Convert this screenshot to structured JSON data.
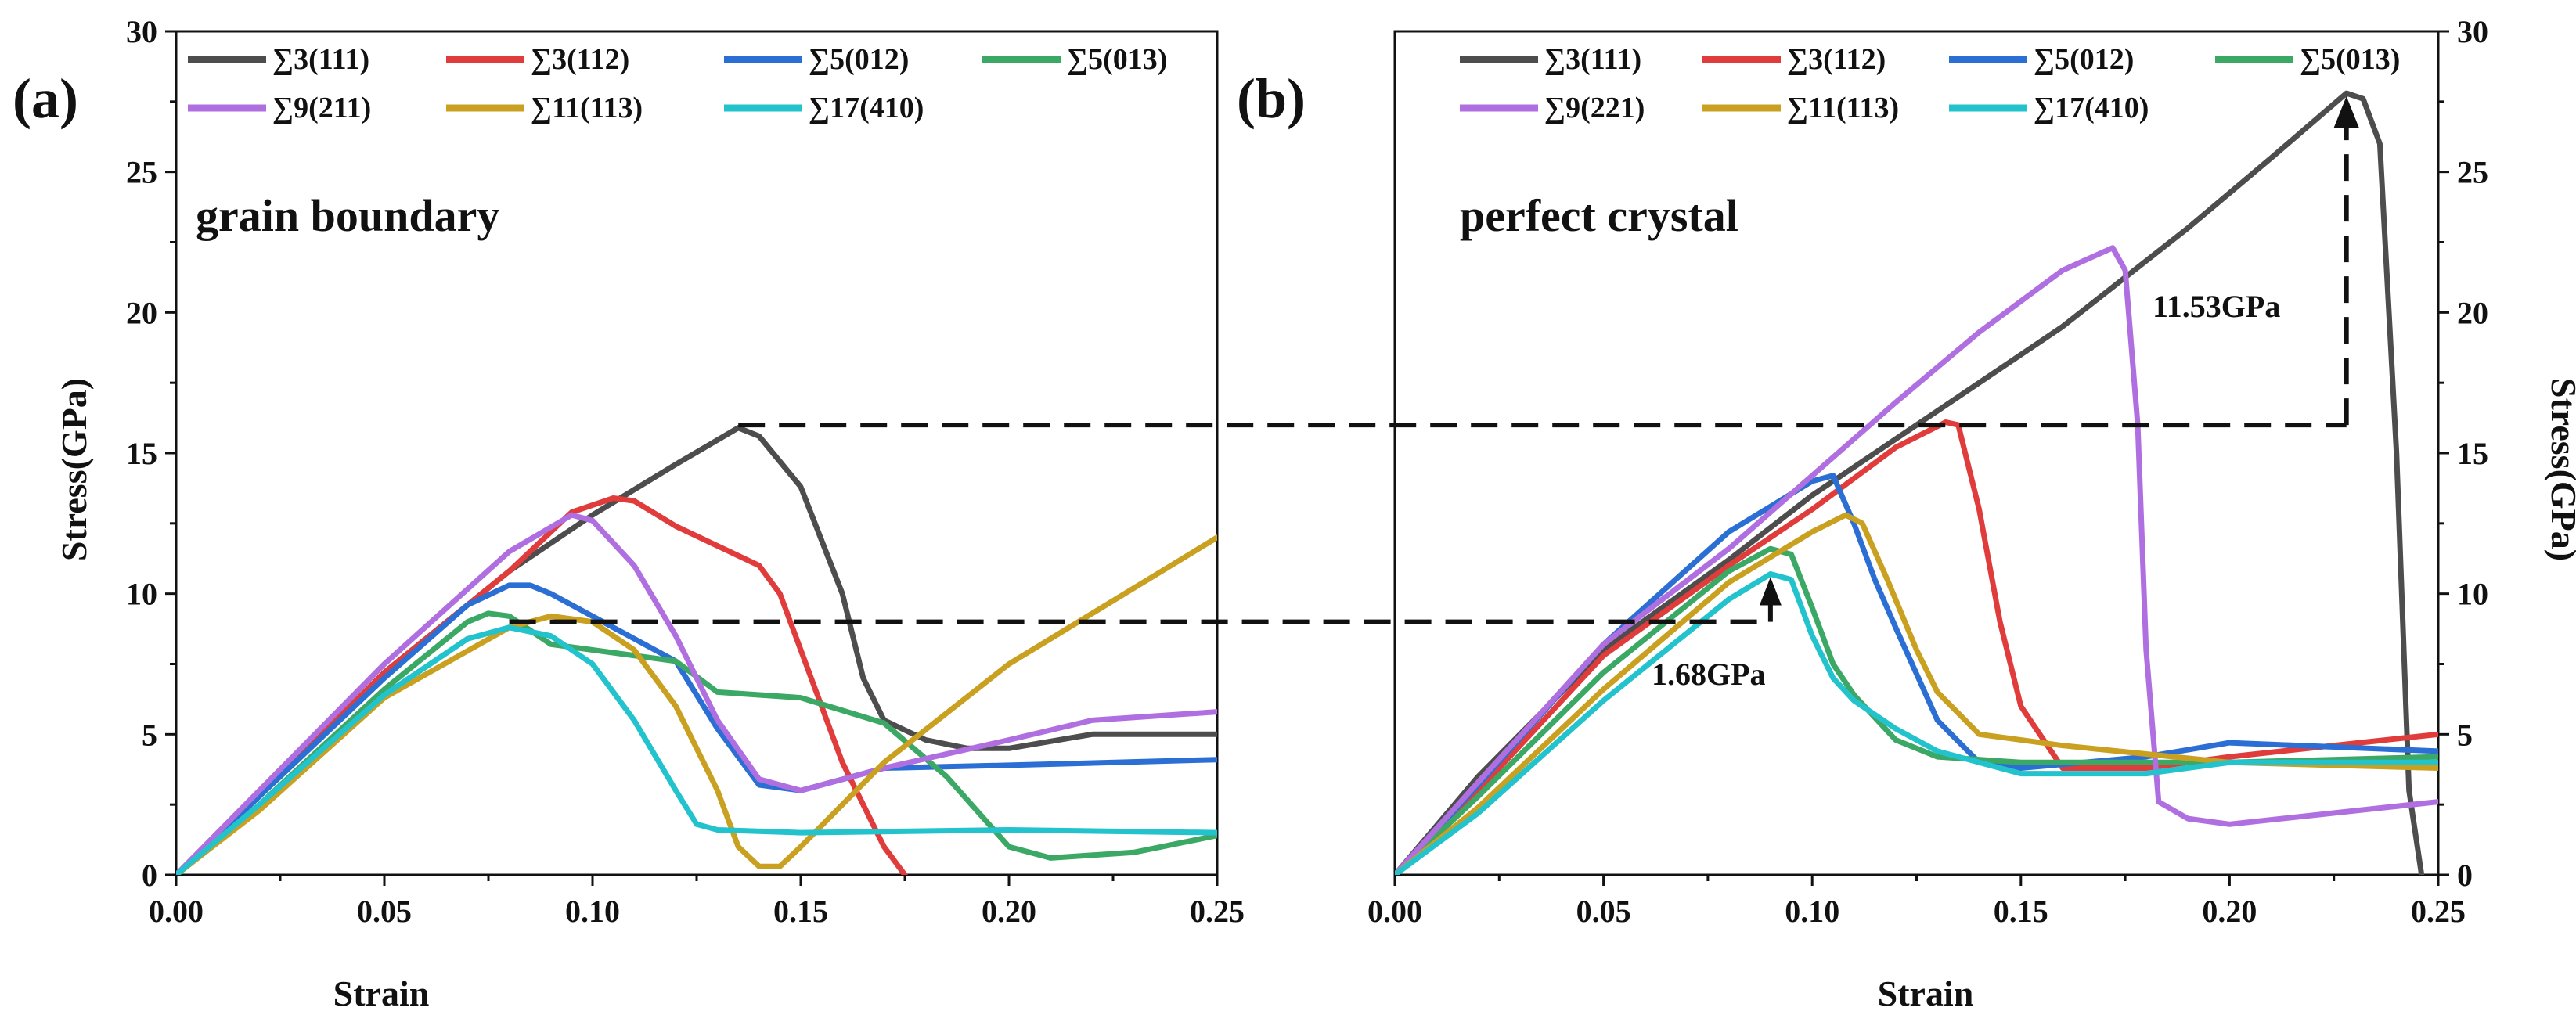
{
  "figure": {
    "annotations": {
      "grain_boundary": "grain boundary",
      "perfect_crystal": "perfect crystal",
      "diff_high": "11.53GPa",
      "diff_low": "1.68GPa"
    },
    "reference_levels": {
      "high": 16.0,
      "low": 9.0
    }
  },
  "chart_data": [
    {
      "type": "line",
      "panel": "(a)",
      "title": "grain boundary",
      "xlabel": "Strain",
      "ylabel": "Stress(GPa)",
      "xlim": [
        0,
        0.25
      ],
      "ylim": [
        0,
        30
      ],
      "xticks": [
        "0.00",
        "0.05",
        "0.10",
        "0.15",
        "0.20",
        "0.25"
      ],
      "yticks": [
        "0",
        "5",
        "10",
        "15",
        "20",
        "25",
        "30"
      ],
      "legend_position": "top",
      "series": [
        {
          "name": "∑3(111)",
          "color": "#4d4d4d",
          "x": [
            0,
            0.02,
            0.05,
            0.08,
            0.1,
            0.12,
            0.135,
            0.14,
            0.15,
            0.16,
            0.165,
            0.17,
            0.18,
            0.19,
            0.2,
            0.22,
            0.25
          ],
          "y": [
            0,
            2.8,
            7.2,
            10.8,
            12.8,
            14.6,
            15.9,
            15.6,
            13.8,
            10.0,
            7.0,
            5.5,
            4.8,
            4.5,
            4.5,
            5.0,
            5.0
          ]
        },
        {
          "name": "∑3(112)",
          "color": "#e03c3c",
          "x": [
            0,
            0.02,
            0.05,
            0.08,
            0.095,
            0.105,
            0.11,
            0.12,
            0.13,
            0.14,
            0.145,
            0.15,
            0.16,
            0.17,
            0.175
          ],
          "y": [
            0,
            2.8,
            7.2,
            10.8,
            12.9,
            13.4,
            13.3,
            12.4,
            11.7,
            11.0,
            10.0,
            8.0,
            4.0,
            1.0,
            0.0
          ]
        },
        {
          "name": "∑5(012)",
          "color": "#2b6fd4",
          "x": [
            0,
            0.02,
            0.05,
            0.07,
            0.08,
            0.085,
            0.09,
            0.1,
            0.11,
            0.12,
            0.13,
            0.14,
            0.15,
            0.17,
            0.2,
            0.25
          ],
          "y": [
            0,
            2.8,
            7.0,
            9.6,
            10.3,
            10.3,
            10.0,
            9.2,
            8.4,
            7.6,
            5.2,
            3.2,
            3.0,
            3.8,
            3.9,
            4.1
          ]
        },
        {
          "name": "∑5(013)",
          "color": "#3ca865",
          "x": [
            0,
            0.02,
            0.05,
            0.07,
            0.075,
            0.08,
            0.09,
            0.1,
            0.12,
            0.13,
            0.15,
            0.17,
            0.185,
            0.2,
            0.21,
            0.23,
            0.25
          ],
          "y": [
            0,
            2.5,
            6.6,
            9.0,
            9.3,
            9.2,
            8.2,
            8.0,
            7.6,
            6.5,
            6.3,
            5.4,
            3.5,
            1.0,
            0.6,
            0.8,
            1.4
          ]
        },
        {
          "name": "∑9(211)",
          "color": "#b06fe0",
          "x": [
            0,
            0.02,
            0.05,
            0.08,
            0.095,
            0.1,
            0.11,
            0.12,
            0.13,
            0.14,
            0.15,
            0.17,
            0.2,
            0.22,
            0.25
          ],
          "y": [
            0,
            3.0,
            7.5,
            11.5,
            12.8,
            12.6,
            11.0,
            8.5,
            5.5,
            3.4,
            3.0,
            3.8,
            4.8,
            5.5,
            5.8
          ]
        },
        {
          "name": "∑11(113)",
          "color": "#c9a020",
          "x": [
            0,
            0.02,
            0.05,
            0.08,
            0.09,
            0.1,
            0.11,
            0.12,
            0.13,
            0.135,
            0.14,
            0.145,
            0.15,
            0.17,
            0.2,
            0.25
          ],
          "y": [
            0,
            2.3,
            6.3,
            8.8,
            9.2,
            9.0,
            8.0,
            6.0,
            3.0,
            1.0,
            0.3,
            0.3,
            1.0,
            4.0,
            7.5,
            12.0
          ]
        },
        {
          "name": "∑17(410)",
          "color": "#22c3cc",
          "x": [
            0,
            0.02,
            0.05,
            0.07,
            0.08,
            0.09,
            0.1,
            0.11,
            0.12,
            0.125,
            0.13,
            0.15,
            0.2,
            0.25
          ],
          "y": [
            0,
            2.5,
            6.4,
            8.4,
            8.8,
            8.5,
            7.5,
            5.5,
            3.0,
            1.8,
            1.6,
            1.5,
            1.6,
            1.5
          ]
        }
      ]
    },
    {
      "type": "line",
      "panel": "(b)",
      "title": "perfect crystal",
      "xlabel": "Strain",
      "ylabel": "Stress(GPa)",
      "xlim": [
        0,
        0.25
      ],
      "ylim": [
        0,
        30
      ],
      "xticks": [
        "0.00",
        "0.05",
        "0.10",
        "0.15",
        "0.20",
        "0.25"
      ],
      "yticks": [
        "0",
        "5",
        "10",
        "15",
        "20",
        "25",
        "30"
      ],
      "legend_position": "top",
      "series": [
        {
          "name": "∑3(111)",
          "color": "#4d4d4d",
          "x": [
            0,
            0.02,
            0.05,
            0.08,
            0.1,
            0.13,
            0.16,
            0.19,
            0.21,
            0.228,
            0.232,
            0.236,
            0.24,
            0.243,
            0.246
          ],
          "y": [
            0,
            3.5,
            8.0,
            11.2,
            13.5,
            16.5,
            19.5,
            23.0,
            25.5,
            27.8,
            27.6,
            26.0,
            15.0,
            3.0,
            0.0
          ]
        },
        {
          "name": "∑3(112)",
          "color": "#e03c3c",
          "x": [
            0,
            0.02,
            0.05,
            0.08,
            0.1,
            0.12,
            0.132,
            0.135,
            0.14,
            0.145,
            0.15,
            0.16,
            0.18,
            0.2,
            0.25
          ],
          "y": [
            0,
            3.0,
            7.8,
            11.0,
            13.0,
            15.2,
            16.1,
            16.0,
            13.0,
            9.0,
            6.0,
            3.8,
            3.8,
            4.2,
            5.0
          ]
        },
        {
          "name": "∑5(012)",
          "color": "#2b6fd4",
          "x": [
            0,
            0.02,
            0.05,
            0.08,
            0.1,
            0.105,
            0.11,
            0.115,
            0.12,
            0.13,
            0.14,
            0.15,
            0.18,
            0.2,
            0.25
          ],
          "y": [
            0,
            3.2,
            8.2,
            12.2,
            14.0,
            14.2,
            12.5,
            10.5,
            8.8,
            5.5,
            4.0,
            3.8,
            4.2,
            4.7,
            4.4
          ]
        },
        {
          "name": "∑5(013)",
          "color": "#3ca865",
          "x": [
            0,
            0.02,
            0.05,
            0.08,
            0.09,
            0.095,
            0.1,
            0.105,
            0.11,
            0.12,
            0.13,
            0.15,
            0.2,
            0.25
          ],
          "y": [
            0,
            2.8,
            7.2,
            10.8,
            11.6,
            11.4,
            9.5,
            7.5,
            6.4,
            4.8,
            4.2,
            4.0,
            4.0,
            4.2
          ]
        },
        {
          "name": "∑9(221)",
          "color": "#b06fe0",
          "x": [
            0,
            0.02,
            0.05,
            0.08,
            0.1,
            0.12,
            0.14,
            0.16,
            0.172,
            0.175,
            0.178,
            0.18,
            0.183,
            0.19,
            0.2,
            0.25
          ],
          "y": [
            0,
            3.3,
            8.2,
            11.6,
            14.2,
            16.8,
            19.3,
            21.5,
            22.3,
            21.5,
            16.0,
            8.0,
            2.6,
            2.0,
            1.8,
            2.6
          ]
        },
        {
          "name": "∑11(113)",
          "color": "#c9a020",
          "x": [
            0,
            0.02,
            0.05,
            0.08,
            0.1,
            0.108,
            0.112,
            0.118,
            0.125,
            0.13,
            0.14,
            0.16,
            0.2,
            0.25
          ],
          "y": [
            0,
            2.4,
            6.6,
            10.4,
            12.2,
            12.8,
            12.5,
            10.5,
            8.0,
            6.5,
            5.0,
            4.6,
            4.0,
            3.8
          ]
        },
        {
          "name": "∑17(410)",
          "color": "#22c3cc",
          "x": [
            0,
            0.02,
            0.05,
            0.08,
            0.09,
            0.095,
            0.1,
            0.105,
            0.11,
            0.12,
            0.13,
            0.15,
            0.18,
            0.2,
            0.25
          ],
          "y": [
            0,
            2.2,
            6.2,
            9.8,
            10.7,
            10.5,
            8.5,
            7.0,
            6.2,
            5.2,
            4.4,
            3.6,
            3.6,
            4.0,
            4.0
          ]
        }
      ]
    }
  ]
}
